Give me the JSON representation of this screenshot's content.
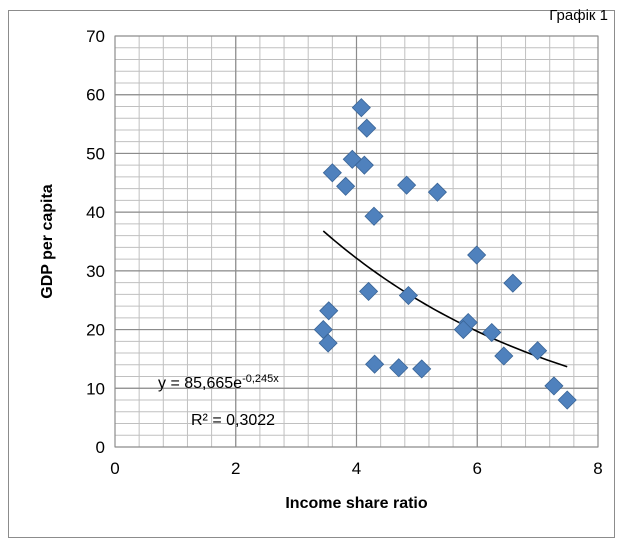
{
  "caption": "Графік 1",
  "chart_data": {
    "type": "scatter",
    "xlabel": "Income share ratio",
    "ylabel": "GDP per capita",
    "xlim": [
      0,
      8
    ],
    "ylim": [
      0,
      70
    ],
    "x_ticks": [
      0,
      2,
      4,
      6,
      8
    ],
    "y_ticks": [
      0,
      10,
      20,
      30,
      40,
      50,
      60,
      70
    ],
    "grid": true,
    "marker_color": "#4f81bd",
    "series": [
      {
        "points": [
          {
            "x": 4.08,
            "y": 57.8
          },
          {
            "x": 4.17,
            "y": 54.3
          },
          {
            "x": 3.93,
            "y": 49.0
          },
          {
            "x": 4.13,
            "y": 48.0
          },
          {
            "x": 3.6,
            "y": 46.7
          },
          {
            "x": 3.82,
            "y": 44.4
          },
          {
            "x": 4.83,
            "y": 44.6
          },
          {
            "x": 5.34,
            "y": 43.4
          },
          {
            "x": 4.29,
            "y": 39.3
          },
          {
            "x": 5.99,
            "y": 32.7
          },
          {
            "x": 6.59,
            "y": 27.9
          },
          {
            "x": 4.2,
            "y": 26.5
          },
          {
            "x": 4.86,
            "y": 25.8
          },
          {
            "x": 3.54,
            "y": 23.2
          },
          {
            "x": 5.85,
            "y": 21.2
          },
          {
            "x": 3.45,
            "y": 20.0
          },
          {
            "x": 5.77,
            "y": 20.0
          },
          {
            "x": 6.24,
            "y": 19.5
          },
          {
            "x": 3.53,
            "y": 17.7
          },
          {
            "x": 7.0,
            "y": 16.4
          },
          {
            "x": 6.44,
            "y": 15.5
          },
          {
            "x": 4.3,
            "y": 14.1
          },
          {
            "x": 4.7,
            "y": 13.5
          },
          {
            "x": 5.08,
            "y": 13.3
          },
          {
            "x": 7.27,
            "y": 10.4
          },
          {
            "x": 7.49,
            "y": 8.0
          }
        ]
      }
    ],
    "trendline": {
      "type": "exponential",
      "a": 85.665,
      "b": -0.245,
      "x_range": [
        3.45,
        7.49
      ],
      "equation_prefix": "y = 85,665e",
      "equation_exponent": "-0,245x",
      "r_squared": "R² = 0,3022",
      "color": "#000000"
    }
  }
}
